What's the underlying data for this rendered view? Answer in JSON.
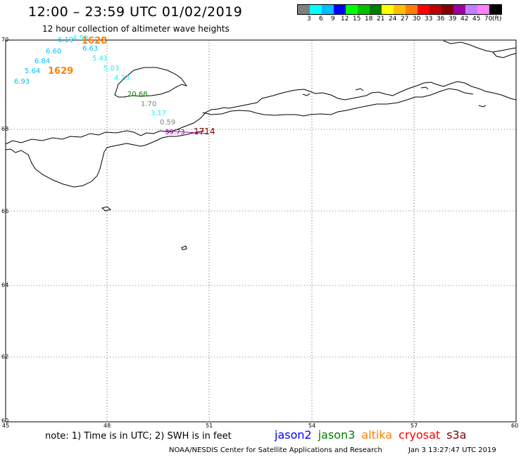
{
  "header": {
    "title": "12:00 – 23:59 UTC 01/02/2019",
    "subtitle": "12 hour collection of altimeter wave heights"
  },
  "colorbar": {
    "colors": [
      "#808080",
      "#00ffff",
      "#00bfff",
      "#0000ff",
      "#00ff00",
      "#00c000",
      "#008000",
      "#ffff00",
      "#ffc000",
      "#ff8000",
      "#ff0000",
      "#c00000",
      "#800000",
      "#a000a0",
      "#c080ff",
      "#ff80ff",
      "#000000"
    ],
    "labels": [
      "3",
      "6",
      "9",
      "12",
      "15",
      "18",
      "21",
      "24",
      "27",
      "30",
      "33",
      "36",
      "39",
      "42",
      "45",
      "70"
    ],
    "unit": "(ft)"
  },
  "axes": {
    "lat_labels": [
      "70",
      "68",
      "66",
      "64",
      "62",
      "60"
    ],
    "lon_labels": [
      "45",
      "48",
      "51",
      "54",
      "57",
      "60"
    ]
  },
  "observations": [
    {
      "text": "6.19",
      "color": "#00bfff"
    },
    {
      "text": "4.59",
      "color": "#00ffff"
    },
    {
      "text": "1628",
      "color": "#ff8000"
    },
    {
      "text": "6.60",
      "color": "#00bfff"
    },
    {
      "text": "6.63",
      "color": "#00bfff"
    },
    {
      "text": "6.84",
      "color": "#00bfff"
    },
    {
      "text": "5.41",
      "color": "#00ffff"
    },
    {
      "text": "5.64",
      "color": "#00bfff"
    },
    {
      "text": "1629",
      "color": "#ff8000"
    },
    {
      "text": "5.03",
      "color": "#00ffff"
    },
    {
      "text": "6.93",
      "color": "#00bfff"
    },
    {
      "text": "4.23",
      "color": "#00ffff"
    },
    {
      "text": "20.68",
      "color": "#008000"
    },
    {
      "text": "1.70",
      "color": "#808080"
    },
    {
      "text": "3.17",
      "color": "#00ffff"
    },
    {
      "text": "0.59",
      "color": "#808080"
    },
    {
      "text": "39.73",
      "color": "#a000a0"
    },
    {
      "text": "1714",
      "color": "#800000"
    }
  ],
  "footer": {
    "note": "note: 1) Time is in UTC; 2) SWH is in feet",
    "satellites": [
      {
        "name": "jason2",
        "color": "#0000ff"
      },
      {
        "name": "jason3",
        "color": "#008000"
      },
      {
        "name": "altika",
        "color": "#ff8000"
      },
      {
        "name": "cryosat",
        "color": "#ff0000"
      },
      {
        "name": "s3a",
        "color": "#800000"
      }
    ],
    "credit": "NOAA/NESDIS Center for Satellite Applications and Research",
    "timestamp": "Jan  3 13:27:47 UTC 2019"
  }
}
